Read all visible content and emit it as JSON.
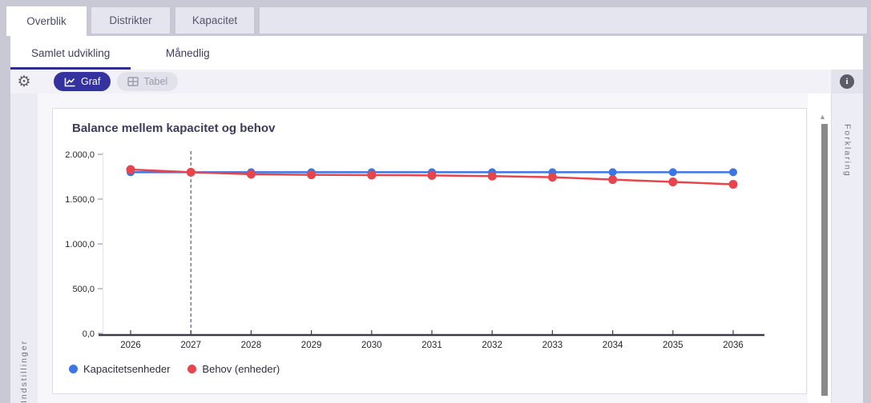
{
  "tabs": [
    {
      "label": "Overblik",
      "active": true
    },
    {
      "label": "Distrikter",
      "active": false
    },
    {
      "label": "Kapacitet",
      "active": false
    }
  ],
  "subtabs": [
    {
      "label": "Samlet udvikling",
      "active": true
    },
    {
      "label": "Månedlig",
      "active": false
    }
  ],
  "toolbar": {
    "graf_label": "Graf",
    "tabel_label": "Tabel",
    "gear_icon": "⚙",
    "info_icon": "i",
    "graf_active_color": "#34329e"
  },
  "rails": {
    "left_label": "Indstillinger",
    "right_label": "Forklaring"
  },
  "scrollbar": {
    "up_arrow": "▲"
  },
  "chart_data": {
    "type": "line",
    "title": "Balance mellem kapacitet og behov",
    "x": [
      2026,
      2027,
      2028,
      2029,
      2030,
      2031,
      2032,
      2033,
      2034,
      2035,
      2036
    ],
    "series": [
      {
        "name": "Kapacitetsenheder",
        "color": "#3b76e4",
        "dot_radius": 5,
        "values": [
          1800,
          1800,
          1800,
          1800,
          1800,
          1800,
          1800,
          1800,
          1800,
          1800,
          1800
        ]
      },
      {
        "name": "Behov (enheder)",
        "color": "#e8444c",
        "dot_radius": 5.5,
        "values": [
          1830,
          1800,
          1778,
          1771,
          1768,
          1765,
          1757,
          1744,
          1718,
          1692,
          1665
        ]
      }
    ],
    "ylim": [
      0,
      2000
    ],
    "yticks": {
      "values": [
        0,
        500,
        1000,
        1500,
        2000
      ],
      "labels": [
        "0,0",
        "500,0",
        "1.000,0",
        "1.500,0",
        "2.000,0"
      ]
    },
    "annotations": {
      "dashed_vline_x": 2027
    },
    "legend_position": "bottom-left",
    "grid": false,
    "axis_color": "#3b3b4d",
    "tick_label_color": "#26262e"
  }
}
